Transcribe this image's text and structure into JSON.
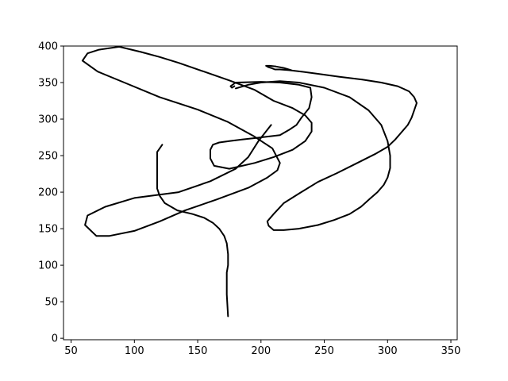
{
  "chart_data": {
    "type": "line",
    "title": "",
    "xlabel": "",
    "ylabel": "",
    "xlim": [
      44,
      355
    ],
    "ylim": [
      -2,
      400
    ],
    "grid": false,
    "xticks": [
      50,
      100,
      150,
      200,
      250,
      300,
      350
    ],
    "yticks": [
      0,
      50,
      100,
      150,
      200,
      250,
      300,
      350,
      400
    ],
    "xtick_labels": [
      "50",
      "100",
      "150",
      "200",
      "250",
      "300",
      "350"
    ],
    "ytick_labels": [
      "0",
      "50",
      "100",
      "150",
      "200",
      "250",
      "300",
      "350",
      "400"
    ],
    "line_color": "#000000",
    "series": [
      {
        "x": [
          174,
          173,
          173,
          174,
          174,
          173,
          171,
          167,
          162,
          155,
          146,
          134,
          124,
          120,
          118,
          118,
          118,
          118,
          120,
          122
        ],
        "y": [
          30,
          60,
          90,
          100,
          115,
          130,
          140,
          150,
          158,
          165,
          170,
          175,
          185,
          195,
          205,
          230,
          245,
          255,
          260,
          265
        ]
      },
      {
        "x": [
          208,
          198,
          190,
          180,
          160,
          135,
          100,
          77,
          63,
          61,
          64,
          70,
          80,
          100,
          120,
          140,
          165,
          190,
          205,
          213,
          215,
          209,
          194,
          174,
          150,
          120,
          92,
          71,
          59,
          63,
          72,
          88,
          105,
          120,
          135,
          155,
          175,
          195,
          210,
          225,
          235,
          240,
          240,
          235,
          225,
          210,
          195,
          175,
          163,
          160,
          160,
          162,
          167,
          175,
          185,
          195,
          205,
          215,
          222,
          228,
          232,
          238,
          240,
          239,
          230,
          215,
          200,
          180,
          176,
          177,
          179
        ],
        "y": [
          292,
          270,
          248,
          232,
          215,
          200,
          192,
          180,
          168,
          155,
          150,
          140,
          140,
          147,
          160,
          175,
          190,
          206,
          220,
          230,
          240,
          260,
          277,
          296,
          313,
          330,
          350,
          365,
          380,
          390,
          395,
          399,
          392,
          385,
          377,
          365,
          353,
          340,
          325,
          315,
          305,
          295,
          283,
          270,
          258,
          248,
          240,
          232,
          236,
          246,
          258,
          265,
          268,
          270,
          272,
          274,
          276,
          278,
          285,
          292,
          302,
          315,
          330,
          343,
          347,
          350,
          351,
          350,
          345,
          343,
          345
        ]
      },
      {
        "x": [
          180,
          190,
          200,
          215,
          230,
          250,
          270,
          285,
          295,
          300,
          302,
          302,
          300,
          297,
          292,
          286,
          279,
          270,
          258,
          245,
          230,
          218,
          210,
          206,
          205,
          210,
          218,
          230,
          245,
          260,
          275,
          290,
          300,
          306,
          311,
          316,
          319,
          321,
          323,
          321,
          317,
          308,
          295,
          280,
          262,
          245,
          232,
          222,
          215,
          211,
          208,
          206,
          204,
          207,
          212,
          218,
          224
        ],
        "y": [
          342,
          347,
          350,
          352,
          350,
          343,
          330,
          312,
          292,
          270,
          250,
          233,
          220,
          210,
          200,
          191,
          180,
          170,
          162,
          155,
          150,
          148,
          148,
          154,
          160,
          170,
          185,
          198,
          214,
          226,
          239,
          252,
          262,
          272,
          282,
          292,
          302,
          312,
          322,
          330,
          338,
          345,
          350,
          354,
          358,
          362,
          365,
          367,
          368,
          368,
          370,
          371,
          373,
          373,
          372,
          370,
          367
        ]
      }
    ]
  }
}
